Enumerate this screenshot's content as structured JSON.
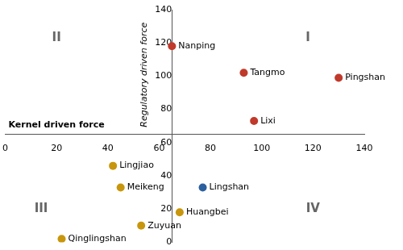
{
  "chart_data": {
    "type": "scatter",
    "x": [
      65,
      93,
      130,
      97,
      42,
      45,
      77,
      68,
      53,
      22
    ],
    "values": [
      118,
      102,
      99,
      73,
      46,
      33,
      33,
      18,
      10,
      2
    ],
    "labels": [
      "Nanping",
      "Tangmo",
      "Pingshan",
      "Lixi",
      "Lingjiao",
      "Meikeng",
      "Lingshan",
      "Huangbei",
      "Zuyuan",
      "Qinglingshan"
    ],
    "colors": [
      "#c0392b",
      "#c0392b",
      "#c0392b",
      "#c0392b",
      "#c8960c",
      "#c8960c",
      "#2c5f9e",
      "#c8960c",
      "#c8960c",
      "#c8960c"
    ],
    "xlabel": "Kernel driven force",
    "ylabel": "Regulatory driven force",
    "xlim": [
      0,
      140
    ],
    "ylim": [
      0,
      140
    ],
    "xticks": [
      0,
      20,
      40,
      60,
      80,
      100,
      120,
      140
    ],
    "yticks": [
      0,
      20,
      40,
      60,
      80,
      100,
      120,
      140
    ],
    "axes_cross": {
      "x": 65,
      "y": 65
    },
    "annotations": [
      {
        "text": "II",
        "x": 20,
        "y": 123
      },
      {
        "text": "I",
        "x": 118,
        "y": 123
      },
      {
        "text": "III",
        "x": 14,
        "y": 20
      },
      {
        "text": "IV",
        "x": 120,
        "y": 20
      }
    ],
    "grid": false
  }
}
